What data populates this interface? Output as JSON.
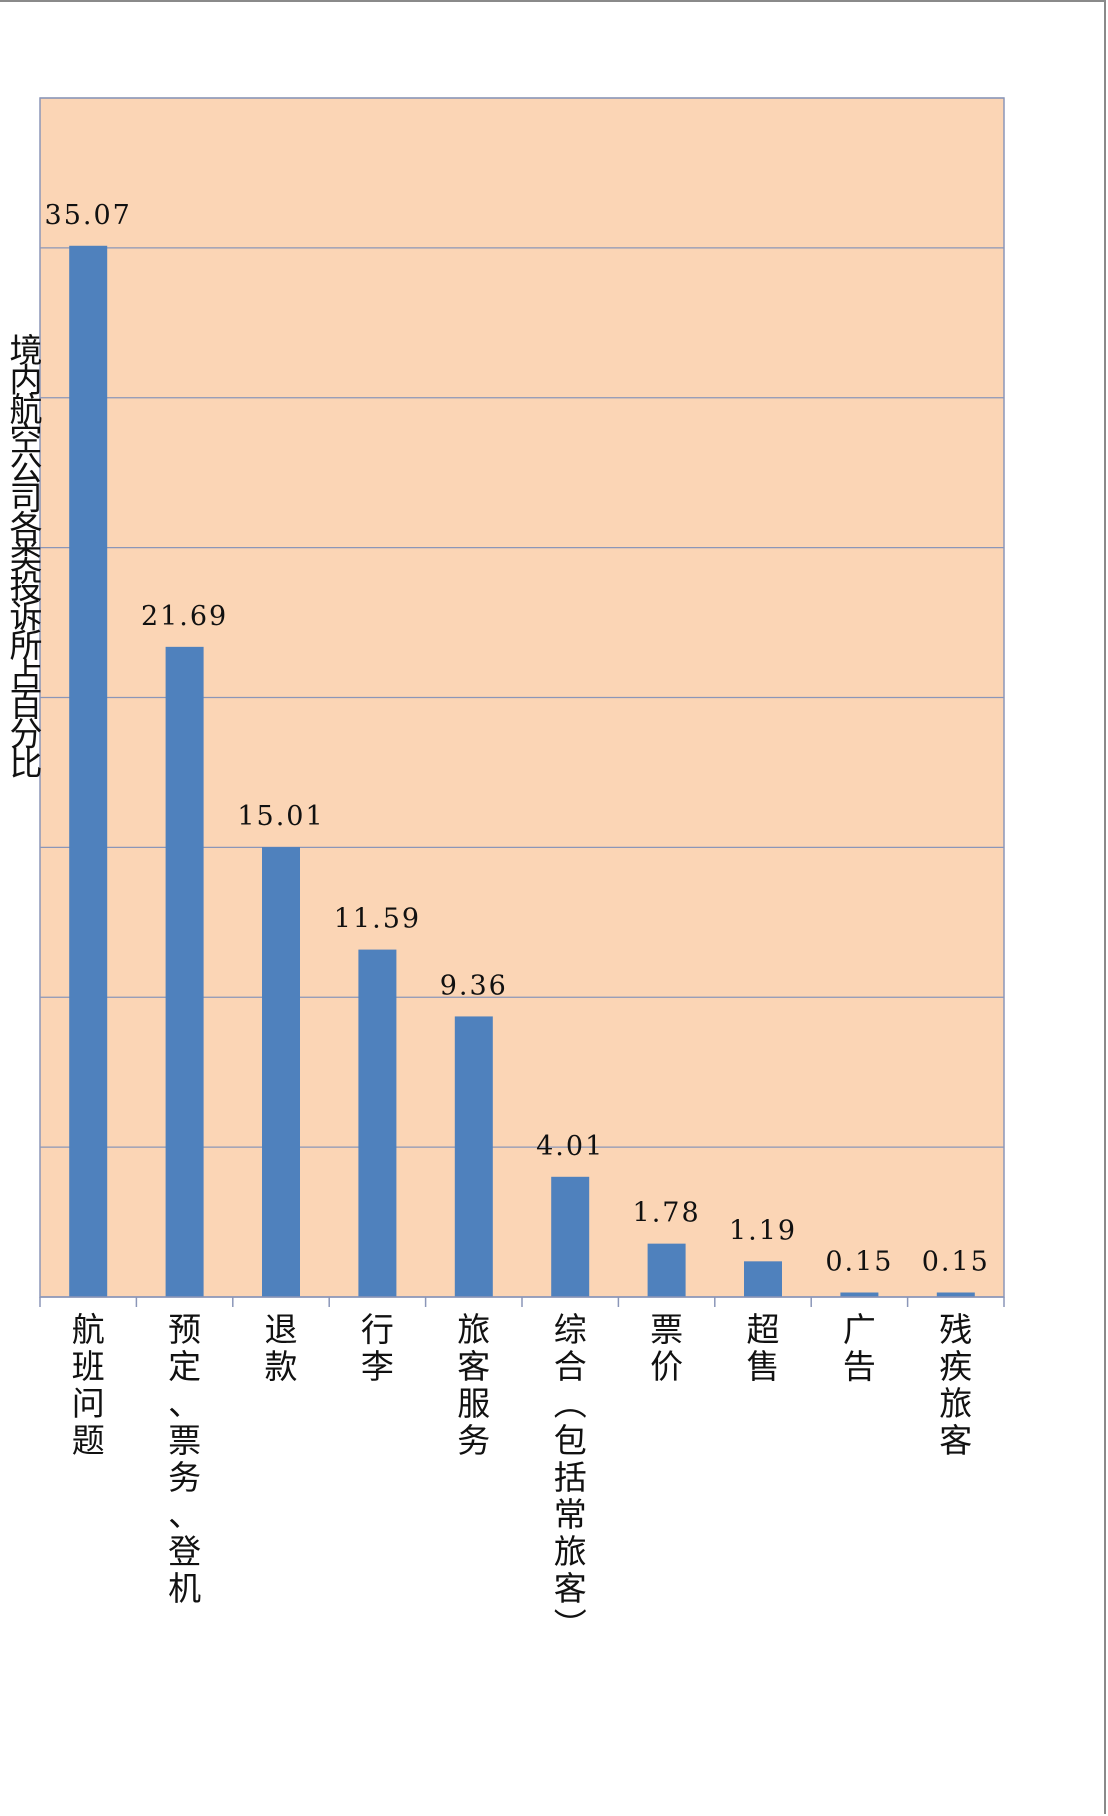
{
  "chart_data": {
    "type": "bar",
    "ylabel": "境内航空公司各类投诉所占百分比",
    "xlabel": "",
    "title": "",
    "categories": [
      "航班问题",
      "预定、票务、登机",
      "退款",
      "行李",
      "旅客服务",
      "综合（包括常旅客）",
      "票价",
      "超售",
      "广告",
      "残疾旅客"
    ],
    "values": [
      35.07,
      21.69,
      15.01,
      11.59,
      9.36,
      4.01,
      1.78,
      1.19,
      0.15,
      0.15
    ],
    "value_labels": [
      "35.07",
      "21.69",
      "15.01",
      "11.59",
      "9.36",
      "4.01",
      "1.78",
      "1.19",
      "0.15",
      "0.15"
    ],
    "ylim": [
      0,
      40
    ],
    "y_gridlines": [
      5,
      10,
      15,
      20,
      25,
      30,
      35,
      40
    ],
    "grid": true,
    "y_ticks_shown": false,
    "legend": "none",
    "colors": {
      "bar": "#4f81bd",
      "plot_background": "#fbd5b5",
      "gridline": "#8b96b8",
      "axis": "#8b96b8"
    }
  }
}
